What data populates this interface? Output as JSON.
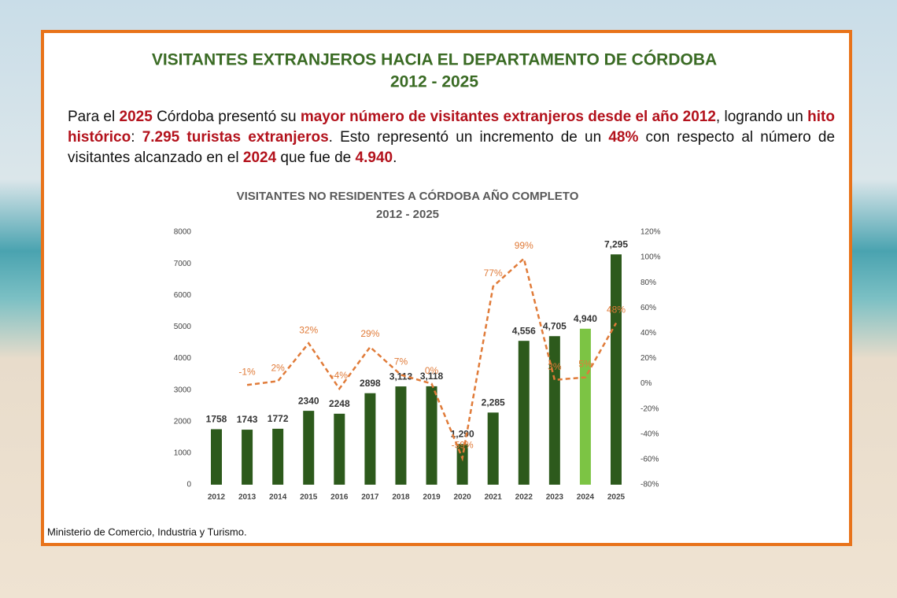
{
  "header": {
    "title": [
      "VISITANTES EXTRANJEROS HACIA EL DEPARTAMENTO DE CÓRDOBA",
      "2012 - 2025"
    ]
  },
  "paragraph": {
    "runs": [
      {
        "text": "Para el ",
        "highlight": false
      },
      {
        "text": "2025",
        "highlight": true
      },
      {
        "text": " Córdoba presentó su ",
        "highlight": false
      },
      {
        "text": "mayor número de visitantes extranjeros desde el año 2012",
        "highlight": true
      },
      {
        "text": ", logrando un ",
        "highlight": false
      },
      {
        "text": "hito histórico",
        "highlight": true
      },
      {
        "text": ": ",
        "highlight": false
      },
      {
        "text": "7.295 turistas extranjeros",
        "highlight": true
      },
      {
        "text": ". Esto representó un incremento de un ",
        "highlight": false
      },
      {
        "text": "48%",
        "highlight": true
      },
      {
        "text": " con respecto al número de visitantes alcanzado en el ",
        "highlight": false
      },
      {
        "text": "2024",
        "highlight": true
      },
      {
        "text": " que fue de ",
        "highlight": false
      },
      {
        "text": "4.940",
        "highlight": true
      },
      {
        "text": ".",
        "highlight": false
      }
    ]
  },
  "chart_data": {
    "type": "bar-line",
    "title": "VISITANTES NO RESIDENTES A CÓRDOBA AÑO COMPLETO",
    "subtitle": "2012 - 2025",
    "categories": [
      "2012",
      "2013",
      "2014",
      "2015",
      "2016",
      "2017",
      "2018",
      "2019",
      "2020",
      "2021",
      "2022",
      "2023",
      "2024",
      "2025"
    ],
    "series": [
      {
        "type": "bar",
        "colors": [
          "#2d5a1c",
          "#2d5a1c",
          "#2d5a1c",
          "#2d5a1c",
          "#2d5a1c",
          "#2d5a1c",
          "#2d5a1c",
          "#2d5a1c",
          "#2d5a1c",
          "#2d5a1c",
          "#2d5a1c",
          "#2d5a1c",
          "#7cc444",
          "#2d5a1c"
        ],
        "values": [
          1758,
          1743,
          1772,
          2340,
          2248,
          2898,
          3113,
          3118,
          1290,
          2285,
          4556,
          4705,
          4940,
          7295
        ],
        "value_labels": [
          "1758",
          "1743",
          "1772",
          "2340",
          "2248",
          "2898",
          "3,113",
          "3,118",
          "1,290",
          "2,285",
          "4,556",
          "4,705",
          "4,940",
          "7,295"
        ]
      },
      {
        "type": "line",
        "axis": "y2",
        "color": "#e07b39",
        "dashed": true,
        "values": [
          null,
          -1,
          2,
          32,
          -4,
          29,
          7,
          0,
          -59,
          77,
          99,
          3,
          5,
          48
        ],
        "value_labels": [
          null,
          "-1%",
          "2%",
          "32%",
          "-4%",
          "29%",
          "7%",
          "0%",
          "-59%",
          "77%",
          "99%",
          "3%",
          "5%",
          "48%"
        ]
      }
    ],
    "ylim": [
      0,
      8000
    ],
    "yticks": [
      0,
      1000,
      2000,
      3000,
      4000,
      5000,
      6000,
      7000,
      8000
    ],
    "y2lim": [
      -80,
      120
    ],
    "y2ticks": [
      {
        "value": -80,
        "label": "-80%"
      },
      {
        "value": -60,
        "label": "-60%"
      },
      {
        "value": -40,
        "label": "-40%"
      },
      {
        "value": -20,
        "label": "-20%"
      },
      {
        "value": 0,
        "label": "0%"
      },
      {
        "value": 20,
        "label": "20%"
      },
      {
        "value": 40,
        "label": "40%"
      },
      {
        "value": 60,
        "label": "60%"
      },
      {
        "value": 80,
        "label": "80%"
      },
      {
        "value": 100,
        "label": "100%"
      },
      {
        "value": 120,
        "label": "120%"
      }
    ],
    "grid": false
  },
  "source": "Ministerio de Comercio, Industria y Turismo."
}
